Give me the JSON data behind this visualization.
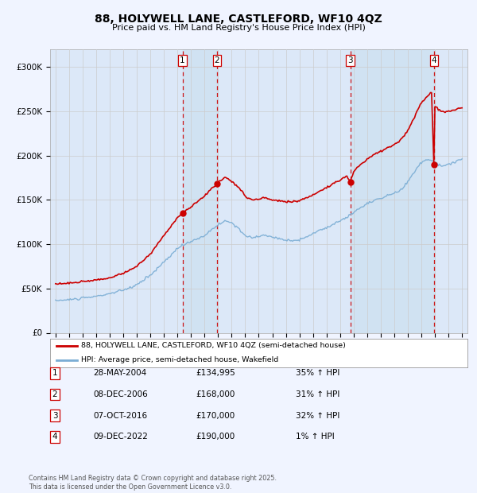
{
  "title": "88, HOLYWELL LANE, CASTLEFORD, WF10 4QZ",
  "subtitle": "Price paid vs. HM Land Registry's House Price Index (HPI)",
  "background_color": "#f0f4ff",
  "plot_bg_color": "#dce8f8",
  "ylim": [
    0,
    320000
  ],
  "yticks": [
    0,
    50000,
    100000,
    150000,
    200000,
    250000,
    300000
  ],
  "ytick_labels": [
    "£0",
    "£50K",
    "£100K",
    "£150K",
    "£200K",
    "£250K",
    "£300K"
  ],
  "xlim_start": 1994.6,
  "xlim_end": 2025.4,
  "legend_label_red": "88, HOLYWELL LANE, CASTLEFORD, WF10 4QZ (semi-detached house)",
  "legend_label_blue": "HPI: Average price, semi-detached house, Wakefield",
  "footnote": "Contains HM Land Registry data © Crown copyright and database right 2025.\nThis data is licensed under the Open Government Licence v3.0.",
  "sale_markers": [
    {
      "num": 1,
      "year": 2004.37,
      "price": 134995,
      "date": "28-MAY-2004",
      "label_price": "£134,995",
      "pct": "35% ↑ HPI"
    },
    {
      "num": 2,
      "year": 2006.92,
      "price": 168000,
      "date": "08-DEC-2006",
      "label_price": "£168,000",
      "pct": "31% ↑ HPI"
    },
    {
      "num": 3,
      "year": 2016.75,
      "price": 170000,
      "date": "07-OCT-2016",
      "label_price": "£170,000",
      "pct": "32% ↑ HPI"
    },
    {
      "num": 4,
      "year": 2022.92,
      "price": 190000,
      "date": "09-DEC-2022",
      "label_price": "£190,000",
      "pct": "1% ↑ HPI"
    }
  ],
  "hpi_color": "#7aadd4",
  "price_color": "#cc0000",
  "vline_color": "#cc0000",
  "grid_color": "#cccccc",
  "shade_color": "#cce0f0"
}
